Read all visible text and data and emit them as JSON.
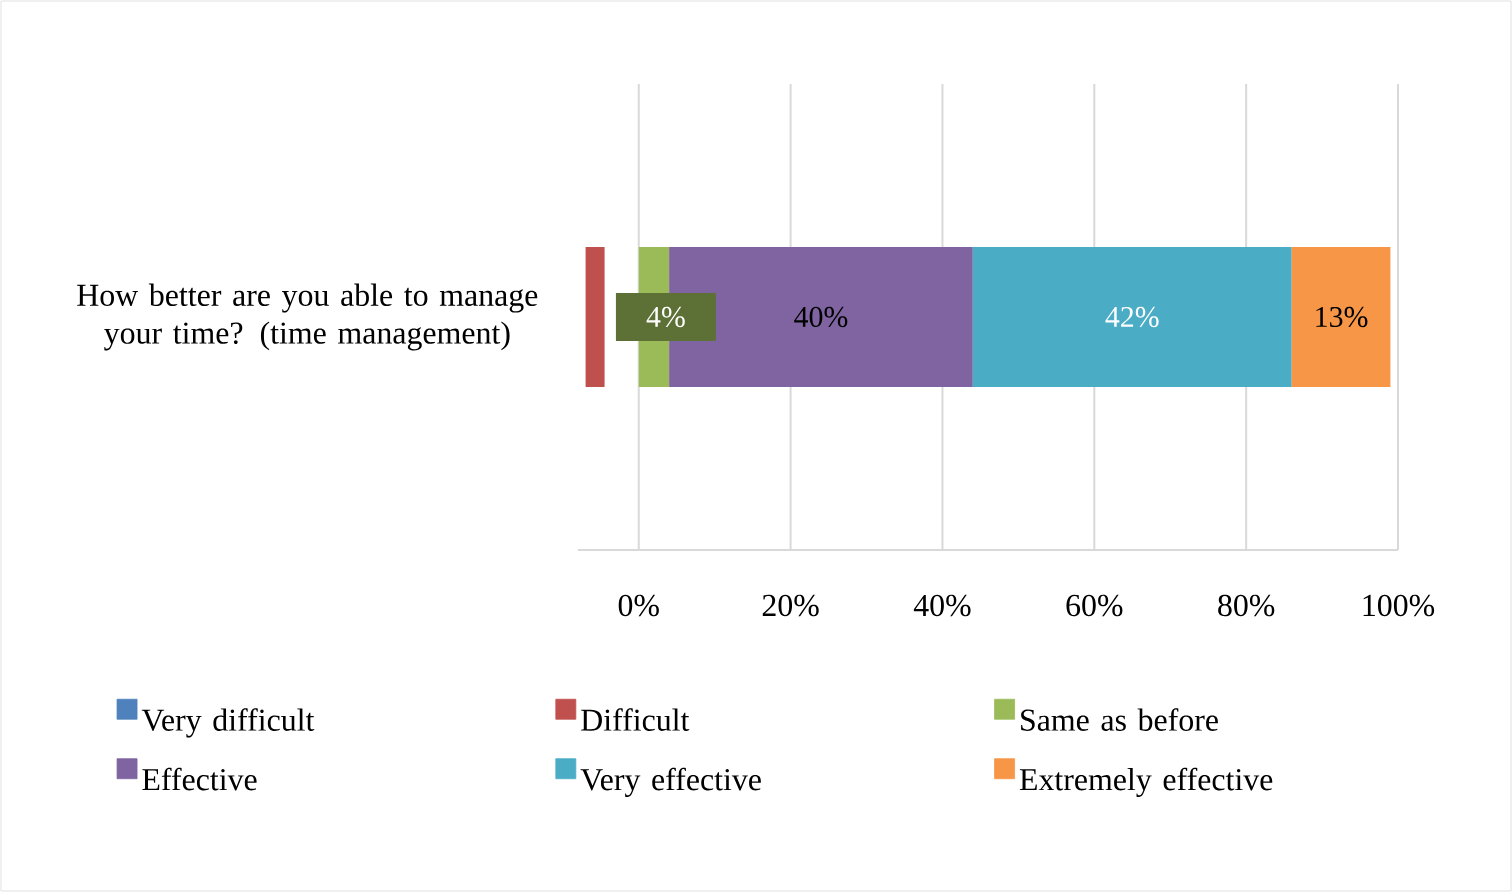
{
  "chart_data": {
    "type": "bar",
    "orientation": "horizontal",
    "categories": [
      "How better are you able to manage your time? (time management)"
    ],
    "series": [
      {
        "name": "Very difficult",
        "color": "#4f81bd",
        "values": [
          null
        ]
      },
      {
        "name": "Difficult",
        "color": "#c0504d",
        "values": [
          2.5
        ],
        "base": [
          -7
        ]
      },
      {
        "name": "Same as before",
        "color": "#9bbb59",
        "values": [
          4
        ],
        "base": [
          0
        ],
        "value_labels": [
          "4%"
        ]
      },
      {
        "name": "Effective",
        "color": "#8064a2",
        "values": [
          40
        ],
        "base": [
          4
        ],
        "value_labels": [
          "40%"
        ]
      },
      {
        "name": "Very effective",
        "color": "#4bacc6",
        "values": [
          42
        ],
        "base": [
          44
        ],
        "value_labels": [
          "42%"
        ]
      },
      {
        "name": "Extremely effective",
        "color": "#f79646",
        "values": [
          13
        ],
        "base": [
          86
        ],
        "value_labels": [
          "13%"
        ]
      }
    ],
    "xlim": [
      -8,
      100
    ],
    "xticks": [
      {
        "value": 0,
        "label": "0%"
      },
      {
        "value": 20,
        "label": "20%"
      },
      {
        "value": 40,
        "label": "40%"
      },
      {
        "value": 60,
        "label": "60%"
      },
      {
        "value": 80,
        "label": "80%"
      },
      {
        "value": 100,
        "label": "100%"
      }
    ],
    "grid": "x",
    "legend": "bottom"
  }
}
